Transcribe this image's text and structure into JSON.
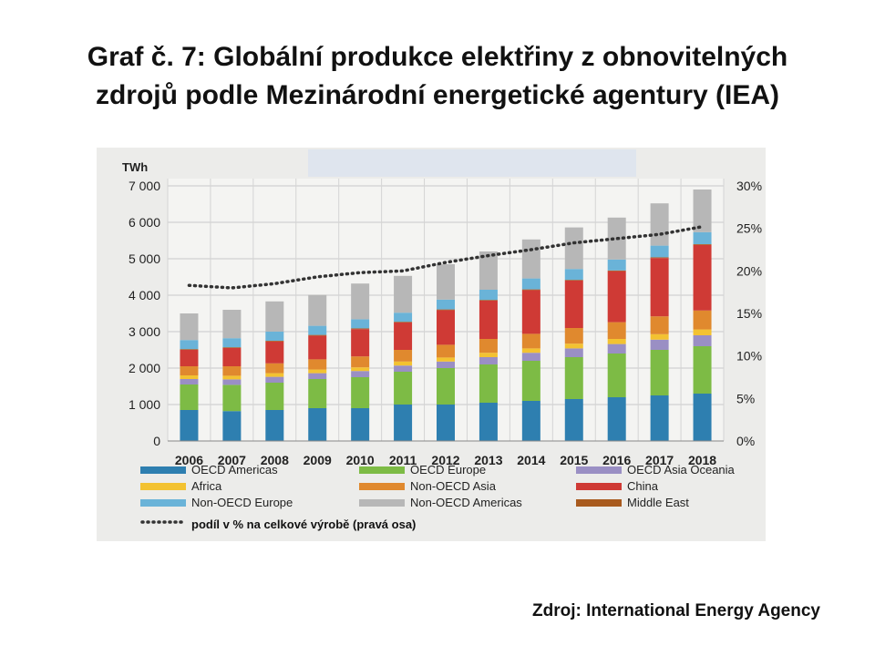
{
  "slide": {
    "title_line1": "Graf č. 7: Globální produkce elektřiny z obnovitelných",
    "title_line2": "zdrojů podle Mezinárodní energetické agentury (IEA)",
    "source": "Zdroj: International Energy Agency"
  },
  "chart_data": {
    "type": "bar",
    "stacked": true,
    "y_unit": "TWh",
    "ylim": [
      0,
      7000
    ],
    "yticks": [
      "7 000",
      "6 000",
      "5 000",
      "4 000",
      "3 000",
      "2 000",
      "1 000",
      "0"
    ],
    "y2lim": [
      0,
      30
    ],
    "y2ticks": [
      "30%",
      "25%",
      "20%",
      "15%",
      "10%",
      "5%",
      "0%"
    ],
    "grid": true,
    "legend_position": "bottom",
    "categories": [
      "2006",
      "2007",
      "2008",
      "2009",
      "2010",
      "2011",
      "2012",
      "2013",
      "2014",
      "2015",
      "2016",
      "2017",
      "2018"
    ],
    "series": [
      {
        "name": "OECD Americas",
        "color": "#2e7fb0",
        "values": [
          850,
          820,
          850,
          900,
          900,
          1000,
          1000,
          1050,
          1100,
          1150,
          1200,
          1250,
          1300
        ]
      },
      {
        "name": "OECD Europe",
        "color": "#7dbb45",
        "values": [
          700,
          720,
          750,
          800,
          850,
          900,
          1000,
          1050,
          1100,
          1150,
          1200,
          1250,
          1300
        ]
      },
      {
        "name": "OECD Asia Oceania",
        "color": "#9a8fc4",
        "values": [
          150,
          150,
          160,
          160,
          170,
          170,
          180,
          200,
          220,
          240,
          260,
          280,
          300
        ]
      },
      {
        "name": "Africa",
        "color": "#f3c231",
        "values": [
          100,
          100,
          100,
          100,
          100,
          110,
          110,
          120,
          120,
          130,
          140,
          150,
          160
        ]
      },
      {
        "name": "Non-OECD Asia",
        "color": "#e0892e",
        "values": [
          250,
          260,
          270,
          280,
          300,
          320,
          350,
          380,
          400,
          430,
          460,
          490,
          520
        ]
      },
      {
        "name": "China",
        "color": "#cf3a35",
        "values": [
          450,
          500,
          600,
          650,
          750,
          750,
          950,
          1050,
          1200,
          1300,
          1400,
          1600,
          1800
        ]
      },
      {
        "name": "Middle East",
        "color": "#a85a1e",
        "values": [
          20,
          20,
          20,
          20,
          20,
          20,
          20,
          20,
          20,
          20,
          20,
          20,
          20
        ]
      },
      {
        "name": "Non-OECD Europe",
        "color": "#6ab3d8",
        "values": [
          250,
          250,
          250,
          250,
          250,
          250,
          270,
          280,
          300,
          300,
          300,
          320,
          330
        ]
      },
      {
        "name": "Non-OECD Americas",
        "color": "#b7b7b7",
        "values": [
          730,
          780,
          830,
          850,
          980,
          1010,
          970,
          1050,
          1070,
          1140,
          1150,
          1160,
          1170
        ]
      }
    ],
    "share_series": {
      "name": "podíl v % na celkové výrobě (pravá osa)",
      "color": "#333333",
      "values": [
        18.3,
        18.0,
        18.5,
        19.3,
        19.8,
        20.0,
        21.0,
        21.8,
        22.5,
        23.3,
        23.8,
        24.3,
        25.2
      ]
    },
    "legend_order": [
      "OECD Americas",
      "OECD Europe",
      "OECD Asia Oceania",
      "Africa",
      "Non-OECD Asia",
      "China",
      "Non-OECD Europe",
      "Non-OECD Americas",
      "Middle East"
    ]
  }
}
